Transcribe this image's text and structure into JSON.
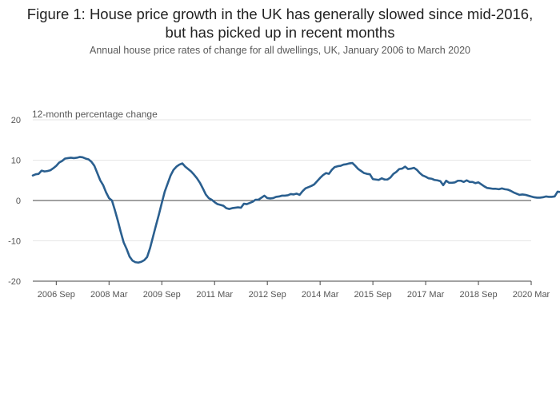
{
  "header": {
    "title": "Figure 1: House price growth in the UK has generally slowed since mid-2016, but has picked up in recent months",
    "subtitle": "Annual house price rates of change for all dwellings, UK, January 2006 to March 2020"
  },
  "colors": {
    "line": "#2a5f8f",
    "grid": "#e6e6e6",
    "axis": "#444444"
  },
  "chart_data": {
    "type": "line",
    "ylabel": "12-month percentage change",
    "xlabel": "",
    "ylim": [
      -20,
      20
    ],
    "yticks": [
      20,
      10,
      0,
      -10,
      -20
    ],
    "xlim": [
      "2006-01",
      "2020-03"
    ],
    "xticks": [
      {
        "date": "2006-09",
        "label": "2006 Sep"
      },
      {
        "date": "2008-03",
        "label": "2008 Mar"
      },
      {
        "date": "2009-09",
        "label": "2009 Sep"
      },
      {
        "date": "2011-03",
        "label": "2011 Mar"
      },
      {
        "date": "2012-09",
        "label": "2012 Sep"
      },
      {
        "date": "2014-03",
        "label": "2014 Mar"
      },
      {
        "date": "2015-09",
        "label": "2015 Sep"
      },
      {
        "date": "2017-03",
        "label": "2017 Mar"
      },
      {
        "date": "2018-09",
        "label": "2018 Sep"
      },
      {
        "date": "2020-03",
        "label": "2020 Mar"
      }
    ],
    "grid": true,
    "series": [
      {
        "start": "2006-01",
        "frequency": "monthly",
        "values": [
          6.2,
          6.5,
          6.6,
          7.4,
          7.2,
          7.3,
          7.5,
          8.0,
          8.6,
          9.4,
          9.8,
          10.4,
          10.5,
          10.6,
          10.5,
          10.6,
          10.8,
          10.7,
          10.4,
          10.2,
          9.6,
          8.6,
          6.8,
          5.0,
          3.8,
          2.0,
          0.6,
          0.0,
          -2.4,
          -5.0,
          -7.8,
          -10.4,
          -12.0,
          -13.9,
          -14.9,
          -15.3,
          -15.4,
          -15.2,
          -14.8,
          -14.0,
          -11.8,
          -9.0,
          -6.2,
          -3.5,
          -0.6,
          2.2,
          4.2,
          6.2,
          7.6,
          8.4,
          8.9,
          9.2,
          8.4,
          7.8,
          7.2,
          6.4,
          5.5,
          4.4,
          3.0,
          1.5,
          0.6,
          0.2,
          -0.4,
          -0.9,
          -1.1,
          -1.3,
          -1.9,
          -2.1,
          -1.9,
          -1.8,
          -1.7,
          -1.8,
          -0.8,
          -0.9,
          -0.6,
          -0.3,
          0.2,
          0.2,
          0.7,
          1.2,
          0.6,
          0.5,
          0.6,
          0.9,
          1.0,
          1.2,
          1.2,
          1.3,
          1.6,
          1.5,
          1.7,
          1.4,
          2.3,
          3.0,
          3.3,
          3.6,
          4.0,
          4.8,
          5.6,
          6.3,
          6.8,
          6.6,
          7.6,
          8.3,
          8.5,
          8.6,
          8.9,
          9.0,
          9.2,
          9.3,
          8.6,
          7.8,
          7.3,
          6.8,
          6.6,
          6.5,
          5.3,
          5.2,
          5.1,
          5.5,
          5.2,
          5.2,
          5.7,
          6.6,
          7.1,
          7.8,
          7.9,
          8.4,
          7.8,
          7.9,
          8.1,
          7.6,
          6.8,
          6.2,
          5.9,
          5.5,
          5.4,
          5.1,
          5.0,
          4.8,
          3.8,
          4.9,
          4.4,
          4.4,
          4.5,
          4.9,
          4.9,
          4.6,
          5.0,
          4.6,
          4.6,
          4.3,
          4.5,
          4.0,
          3.5,
          3.1,
          3.0,
          2.9,
          2.9,
          2.8,
          3.0,
          2.8,
          2.7,
          2.4,
          2.0,
          1.7,
          1.4,
          1.5,
          1.4,
          1.2,
          1.0,
          0.8,
          0.7,
          0.7,
          0.8,
          1.0,
          0.9,
          0.9,
          1.0,
          2.2,
          2.1,
          2.2,
          2.2
        ]
      }
    ]
  }
}
